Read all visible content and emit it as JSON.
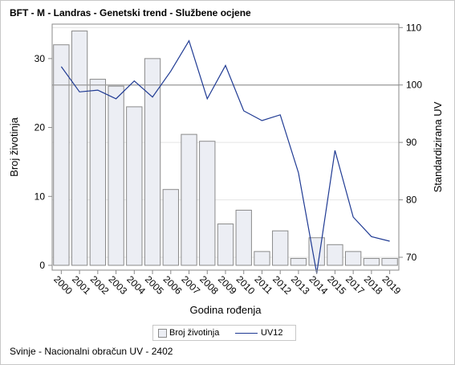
{
  "title": "BFT - M - Landras - Genetski trend - Službene ocjene",
  "footer": "Svinje - Nacionalni obračun UV - 2402",
  "colors": {
    "bar_fill": "#eceef4",
    "bar_stroke": "#8a8a8a",
    "line": "#1f3a93",
    "refline": "#9a9a9a",
    "grid": "#e4e4e4",
    "axis": "#8a8a8a"
  },
  "chart_data": {
    "type": "bar",
    "title": "BFT - M - Landras - Genetski trend - Službene ocjene",
    "xlabel": "Godina rođenja",
    "ylabel": "Broj životinja",
    "y2label": "Standardizirana UV",
    "categories": [
      "2000",
      "2001",
      "2002",
      "2003",
      "2004",
      "2005",
      "2006",
      "2007",
      "2008",
      "2009",
      "2010",
      "2011",
      "2012",
      "2013",
      "2014",
      "2015",
      "2017",
      "2018",
      "2019"
    ],
    "series": [
      {
        "name": "Broj životinja",
        "type": "bar",
        "axis": "left",
        "values": [
          32,
          34,
          27,
          26,
          23,
          30,
          11,
          19,
          18,
          6,
          8,
          2,
          5,
          1,
          4,
          3,
          2,
          1,
          1
        ]
      },
      {
        "name": "UV12",
        "type": "line",
        "axis": "right",
        "values": [
          103.2,
          98.8,
          99.1,
          97.6,
          100.7,
          97.9,
          102.4,
          107.7,
          97.6,
          103.4,
          95.5,
          93.8,
          94.8,
          84.7,
          67.2,
          88.6,
          77.0,
          73.6,
          72.8
        ]
      }
    ],
    "ylim": [
      0,
      35
    ],
    "y2lim": [
      68.6,
      110.6
    ],
    "yticks": [
      0,
      10,
      20,
      30
    ],
    "y2ticks": [
      70,
      80,
      90,
      100,
      110
    ],
    "reference_line_y2": 100,
    "grid": true,
    "legend": "bottom-center"
  }
}
